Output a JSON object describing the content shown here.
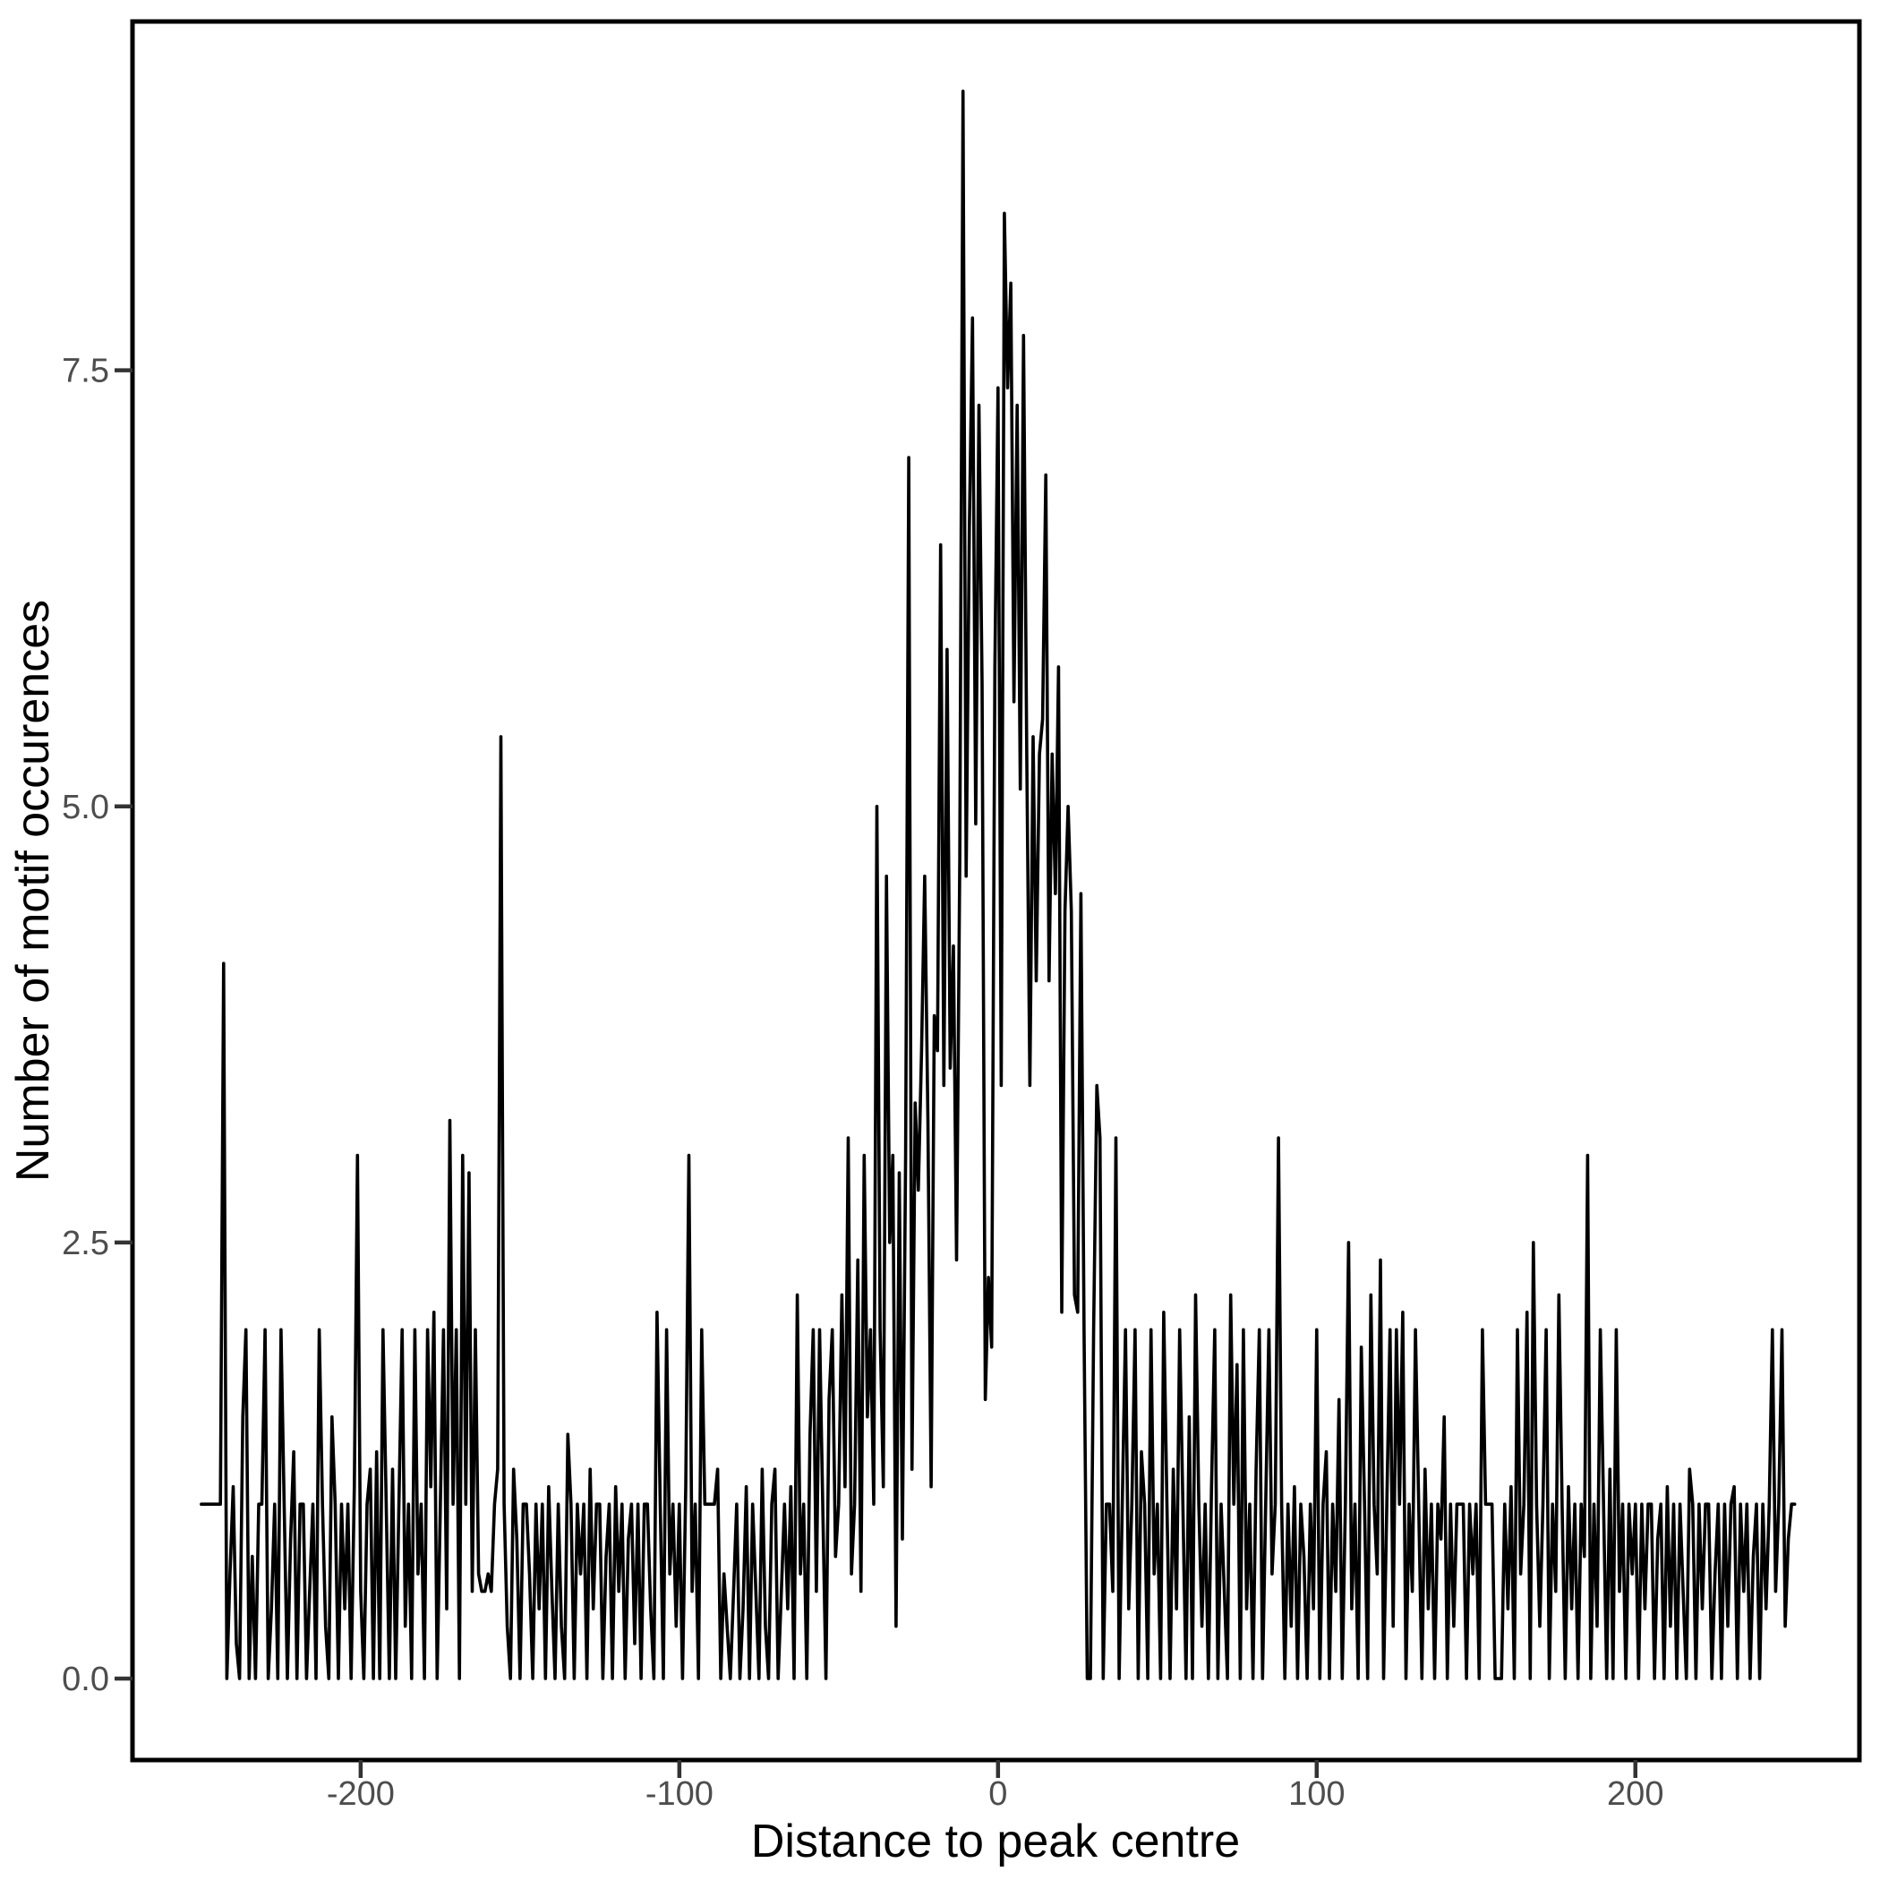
{
  "styles": {
    "background": "#FFFFFF",
    "panel_border_color": "#000000",
    "panel_border_width": 5,
    "tick_mark_color": "#333333",
    "tick_mark_width": 4.5,
    "tick_label_color": "#4D4D4D",
    "axis_title_color": "#000000",
    "line_color": "#000000",
    "line_width": 3.6
  },
  "chart_data": {
    "type": "line",
    "title": "",
    "xlabel": "Distance to peak centre",
    "ylabel": "Number of motif occurences",
    "legend": "none",
    "grid": "off",
    "xlim": [
      -271.6,
      270.3
    ],
    "ylim": [
      -0.467,
      9.5
    ],
    "x_start": -250,
    "x_end": 250,
    "x_ticks": [
      {
        "value": -200,
        "label": "-200"
      },
      {
        "value": -100,
        "label": "-100"
      },
      {
        "value": 0,
        "label": "0"
      },
      {
        "value": 100,
        "label": "100"
      },
      {
        "value": 200,
        "label": "200"
      }
    ],
    "y_ticks": [
      {
        "value": 0,
        "label": "0.0"
      },
      {
        "value": 2.5,
        "label": "2.5"
      },
      {
        "value": 5,
        "label": "5.0"
      },
      {
        "value": 7.5,
        "label": "7.5"
      }
    ],
    "values": [
      1,
      1,
      1,
      1,
      1,
      1,
      1,
      4.1,
      0,
      0.6,
      1.1,
      0.2,
      0,
      1.5,
      2,
      0,
      0.7,
      0,
      1,
      1,
      2,
      0,
      0.4,
      1,
      0,
      2,
      1,
      0,
      0.8,
      1.3,
      0,
      1,
      1,
      0,
      0.5,
      1,
      0,
      2,
      1,
      0.3,
      0,
      1.5,
      1,
      0,
      1,
      0.4,
      1,
      0,
      1.1,
      3,
      0.5,
      0,
      1,
      1.2,
      0,
      1.3,
      0,
      2,
      1,
      0,
      1.2,
      0,
      1,
      2,
      0.3,
      1,
      0,
      2,
      0.6,
      1,
      0,
      2,
      1.1,
      2.1,
      0,
      1,
      2,
      0.4,
      3.2,
      1,
      2,
      0,
      3,
      1,
      2.9,
      0.5,
      2,
      0.6,
      0.5,
      0.5,
      0.6,
      0.5,
      1,
      1.2,
      5.4,
      1,
      0.3,
      0,
      1.2,
      0.8,
      0,
      1,
      1,
      0.6,
      0,
      1,
      0.4,
      1,
      0,
      1.1,
      0.5,
      0,
      1,
      0.3,
      0,
      1.4,
      1,
      0,
      1,
      0.6,
      1,
      0,
      1.2,
      0.4,
      1,
      1,
      0,
      0.7,
      1,
      0,
      1.1,
      0.5,
      1,
      0,
      0.8,
      1,
      0.2,
      1,
      0,
      1,
      1,
      0.4,
      0,
      2.1,
      1,
      0,
      2,
      0.6,
      1,
      0.3,
      1,
      0,
      1.1,
      3,
      0.5,
      1,
      0,
      2,
      1,
      1,
      1,
      1,
      1.2,
      0,
      0.6,
      0.3,
      0,
      0.5,
      1,
      0,
      0.4,
      1.1,
      0,
      1,
      0.5,
      0,
      1.2,
      0.3,
      0,
      1,
      1.2,
      0,
      0.5,
      1,
      0.4,
      1.1,
      0,
      2.2,
      0.6,
      1,
      0,
      1.4,
      2,
      0.5,
      2,
      1,
      0,
      1.6,
      2,
      0.7,
      1,
      2.2,
      1.1,
      3.1,
      0.6,
      1,
      2.4,
      0.5,
      3,
      1.5,
      2,
      1,
      5,
      2,
      1.1,
      4.6,
      2.5,
      3,
      0.3,
      2.9,
      0.8,
      3,
      7,
      1.2,
      3.3,
      2.8,
      3.6,
      4.6,
      3.2,
      1.1,
      3.8,
      3.6,
      6.5,
      3.4,
      5.9,
      3.5,
      4.2,
      2.4,
      4.7,
      9.1,
      4.6,
      6.6,
      7.8,
      4.9,
      7.3,
      5.7,
      1.6,
      2.3,
      1.9,
      5.8,
      7.4,
      3.4,
      8.4,
      7.4,
      8,
      5.6,
      7.3,
      5.1,
      7.7,
      5.3,
      3.4,
      5.4,
      4,
      5.3,
      5.5,
      6.9,
      4,
      5.3,
      4.5,
      5.8,
      2.1,
      4.4,
      5,
      4.4,
      2.2,
      2.1,
      4.5,
      2,
      0,
      0,
      2,
      3.4,
      3.1,
      0,
      1,
      1,
      0.5,
      3.1,
      0,
      1,
      2,
      0.4,
      1,
      2,
      0,
      1.3,
      1,
      0,
      2,
      0.6,
      1,
      0,
      2.1,
      1,
      0,
      1.2,
      0.4,
      2,
      1,
      0,
      1.5,
      0,
      2.2,
      1,
      0.3,
      1,
      0,
      1.1,
      2,
      0,
      1,
      0.5,
      0,
      2.2,
      1,
      1.8,
      0,
      2,
      0.4,
      1,
      0,
      1.2,
      2,
      0,
      1,
      2,
      0.6,
      1,
      3.1,
      1,
      0,
      1,
      0.3,
      1.1,
      0,
      1,
      0.7,
      0,
      1,
      0.4,
      2,
      0,
      1,
      1.3,
      0,
      1,
      0.5,
      1.6,
      0,
      1,
      2.5,
      0.4,
      1,
      0,
      1.9,
      1,
      0,
      2.2,
      1,
      0.6,
      2.4,
      0,
      1,
      2,
      0.3,
      2,
      1,
      2.1,
      0,
      1,
      0.5,
      2,
      1,
      0,
      1.2,
      0.4,
      1,
      0,
      1,
      0.8,
      1.5,
      0,
      1,
      0.3,
      1,
      1,
      1,
      0,
      1,
      0.6,
      1,
      0,
      2,
      1,
      1,
      1,
      0,
      0,
      0,
      1,
      0.4,
      1.1,
      0,
      2,
      0.6,
      1,
      2.1,
      0,
      2.5,
      1,
      0.3,
      1,
      2,
      0,
      1,
      0.5,
      2.2,
      1,
      0,
      1.1,
      0.4,
      1,
      0,
      1,
      0.7,
      3,
      0,
      1,
      0.3,
      2,
      1,
      0,
      1.2,
      0,
      2,
      0.5,
      1,
      0,
      1,
      0.6,
      1,
      0,
      1,
      0.4,
      1,
      1,
      0,
      0.8,
      1,
      0,
      1.1,
      0.3,
      1,
      0,
      1,
      0.5,
      0,
      1.2,
      1,
      0,
      1,
      0.4,
      1,
      1,
      0,
      0.6,
      1,
      0,
      1,
      0.3,
      1,
      1.1,
      0,
      1,
      0.5,
      1,
      0,
      0.7,
      1,
      0,
      1,
      0.4,
      1,
      2,
      0.5,
      1,
      2,
      0.3,
      0.8,
      1,
      1
    ]
  }
}
